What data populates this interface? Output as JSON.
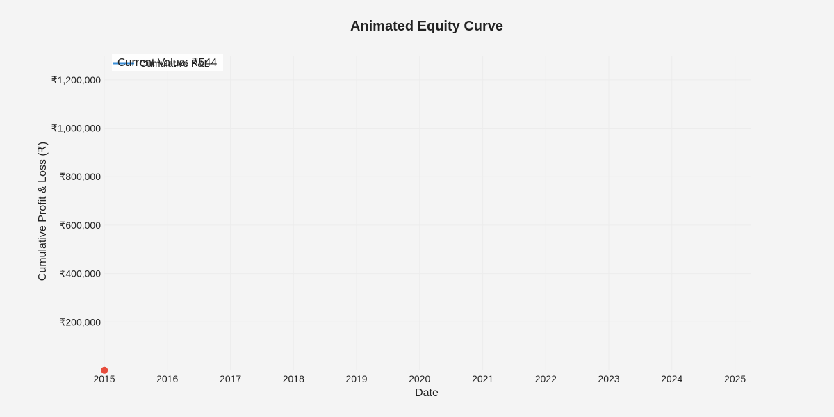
{
  "chart_data": {
    "type": "line",
    "title": "Animated Equity Curve",
    "xlabel": "Date",
    "ylabel": "Cumulative Profit & Loss (₹)",
    "x_ticks": [
      "2015",
      "2016",
      "2017",
      "2018",
      "2019",
      "2020",
      "2021",
      "2022",
      "2023",
      "2024",
      "2025"
    ],
    "y_ticks": [
      {
        "value": 200000,
        "label": "₹200,000"
      },
      {
        "value": 400000,
        "label": "₹400,000"
      },
      {
        "value": 600000,
        "label": "₹600,000"
      },
      {
        "value": 800000,
        "label": "₹800,000"
      },
      {
        "value": 1000000,
        "label": "₹1,000,000"
      },
      {
        "value": 1200000,
        "label": "₹1,200,000"
      }
    ],
    "xlim": [
      "2015-01-01",
      "2025-04-01"
    ],
    "ylim": [
      0,
      1300000
    ],
    "grid": true,
    "legend_position": "top-left",
    "series": [
      {
        "name": "Cumulative P&L",
        "color": "#3a8fd8",
        "points": [
          {
            "x": "2015-01-02",
            "y": 544
          }
        ]
      }
    ],
    "current_point": {
      "x": "2015-01-02",
      "y": 544,
      "color": "#e74c3c"
    },
    "annotation": "Current Value: ₹544"
  }
}
